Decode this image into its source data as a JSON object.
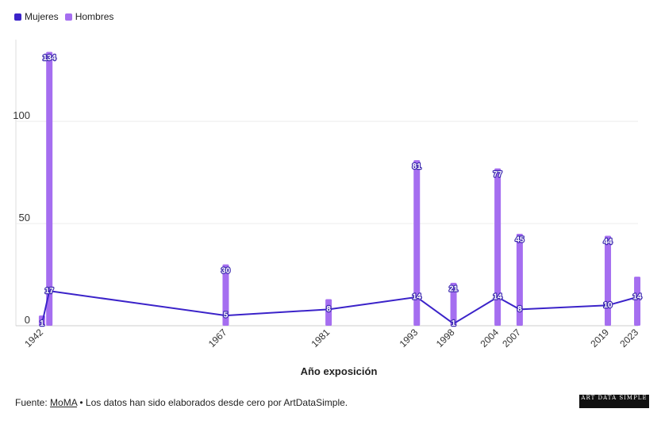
{
  "legend": {
    "items": [
      {
        "label": "Mujeres",
        "color": "#3b23c9"
      },
      {
        "label": "Hombres",
        "color": "#a56ef0"
      }
    ]
  },
  "footer": {
    "prefix": "Fuente: ",
    "source_link": "MoMA",
    "suffix": " • Los datos han sido elaborados desde cero por ArtDataSimple.",
    "logo_text": "ART DATA SIMPLE"
  },
  "chart_data": {
    "type": "bar",
    "xlabel": "Año exposición",
    "ylabel": "",
    "ylim": [
      0,
      140
    ],
    "yticks": [
      0,
      50,
      100
    ],
    "xticks": [
      "1942",
      "1967",
      "1981",
      "1993",
      "1998",
      "2004",
      "2007",
      "2019",
      "2023"
    ],
    "grid": true,
    "legend_position": "top-left",
    "series": [
      {
        "name": "Hombres",
        "type": "bar",
        "color": "#a56ef0",
        "points": [
          {
            "x": 1942,
            "value": 5,
            "label": ""
          },
          {
            "x": 1943,
            "value": 134,
            "label": "134"
          },
          {
            "x": 1967,
            "value": 30,
            "label": "30"
          },
          {
            "x": 1981,
            "value": 13,
            "label": ""
          },
          {
            "x": 1993,
            "value": 81,
            "label": "81"
          },
          {
            "x": 1998,
            "value": 21,
            "label": "21"
          },
          {
            "x": 2004,
            "value": 77,
            "label": "77"
          },
          {
            "x": 2007,
            "value": 45,
            "label": "45"
          },
          {
            "x": 2019,
            "value": 44,
            "label": "44"
          },
          {
            "x": 2023,
            "value": 24,
            "label": ""
          }
        ]
      },
      {
        "name": "Mujeres",
        "type": "line",
        "color": "#3b23c9",
        "points": [
          {
            "x": 1942,
            "value": 1,
            "label": "1"
          },
          {
            "x": 1943,
            "value": 17,
            "label": "17"
          },
          {
            "x": 1967,
            "value": 5,
            "label": "5"
          },
          {
            "x": 1981,
            "value": 8,
            "label": "8"
          },
          {
            "x": 1993,
            "value": 14,
            "label": "14"
          },
          {
            "x": 1998,
            "value": 1,
            "label": "1"
          },
          {
            "x": 2004,
            "value": 14,
            "label": "14"
          },
          {
            "x": 2007,
            "value": 8,
            "label": "8"
          },
          {
            "x": 2019,
            "value": 10,
            "label": "10"
          },
          {
            "x": 2023,
            "value": 14,
            "label": "14"
          }
        ]
      }
    ]
  }
}
